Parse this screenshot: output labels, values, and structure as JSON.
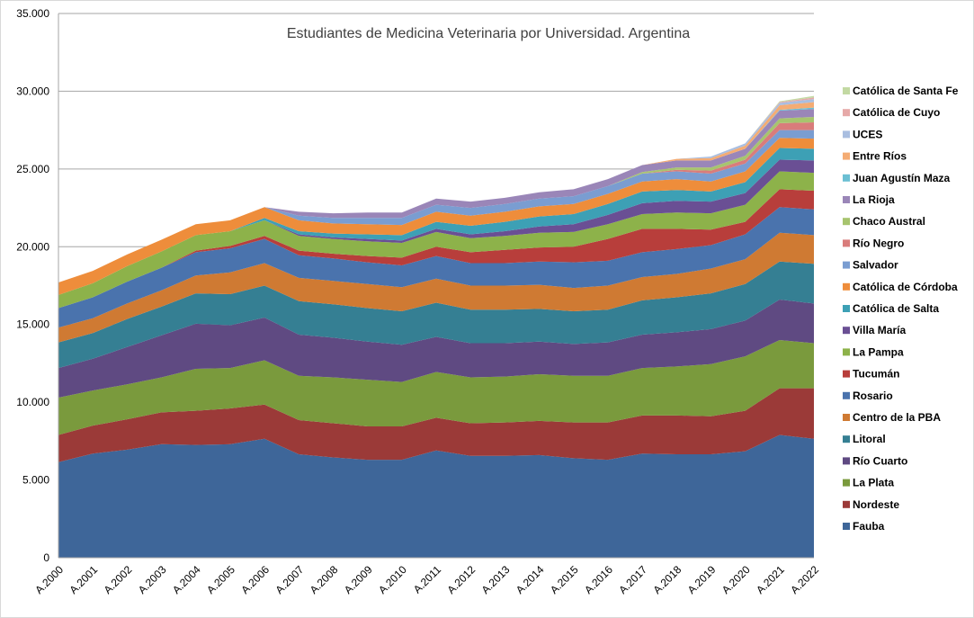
{
  "chart_data": {
    "type": "area",
    "stacked": true,
    "title": "Estudiantes de Medicina Veterinaria por Universidad. Argentina",
    "xlabel": "",
    "ylabel": "",
    "ylim": [
      0,
      35000
    ],
    "yticks": [
      0,
      5000,
      10000,
      15000,
      20000,
      25000,
      30000,
      35000
    ],
    "ytick_labels": [
      "0",
      "5.000",
      "10.000",
      "15.000",
      "20.000",
      "25.000",
      "30.000",
      "35.000"
    ],
    "grid": true,
    "legend_position": "right",
    "categories": [
      "A.2000",
      "A.2001",
      "A.2002",
      "A.2003",
      "A.2004",
      "A.2005",
      "A.2006",
      "A.2007",
      "A.2008",
      "A.2009",
      "A.2010",
      "A.2011",
      "A.2012",
      "A.2013",
      "A.2014",
      "A.2015",
      "A.2016",
      "A.2017",
      "A.2018",
      "A.2019",
      "A.2020",
      "A.2021",
      "A.2022"
    ],
    "series": [
      {
        "name": "Fauba",
        "color": "#3e6699",
        "values": [
          6150,
          6700,
          6950,
          7300,
          7250,
          7300,
          7650,
          6650,
          6450,
          6300,
          6300,
          6900,
          6550,
          6550,
          6600,
          6400,
          6300,
          6700,
          6650,
          6650,
          6850,
          7900,
          7650
        ]
      },
      {
        "name": "Nordeste",
        "color": "#9b3a38",
        "values": [
          1750,
          1800,
          1950,
          2050,
          2200,
          2300,
          2200,
          2200,
          2200,
          2150,
          2150,
          2100,
          2100,
          2150,
          2200,
          2300,
          2400,
          2450,
          2500,
          2450,
          2600,
          3000,
          3250
        ]
      },
      {
        "name": "La Plata",
        "color": "#7a9a3d",
        "values": [
          2400,
          2250,
          2250,
          2250,
          2700,
          2600,
          2850,
          2850,
          2950,
          3000,
          2850,
          2950,
          2950,
          2950,
          3000,
          3000,
          3000,
          3050,
          3150,
          3350,
          3500,
          3100,
          2900
        ]
      },
      {
        "name": "Río Cuarto",
        "color": "#5f4a82",
        "values": [
          1900,
          2050,
          2400,
          2700,
          2900,
          2750,
          2750,
          2650,
          2550,
          2450,
          2400,
          2250,
          2200,
          2150,
          2100,
          2050,
          2150,
          2150,
          2200,
          2250,
          2300,
          2600,
          2550
        ]
      },
      {
        "name": "Litoral",
        "color": "#357f93",
        "values": [
          1650,
          1650,
          1800,
          1850,
          1950,
          2000,
          2050,
          2150,
          2150,
          2150,
          2150,
          2200,
          2150,
          2150,
          2100,
          2100,
          2100,
          2200,
          2250,
          2300,
          2350,
          2450,
          2550
        ]
      },
      {
        "name": "Centro de la PBA",
        "color": "#cf7a33",
        "values": [
          950,
          950,
          1000,
          1050,
          1150,
          1400,
          1450,
          1500,
          1500,
          1550,
          1550,
          1550,
          1550,
          1550,
          1550,
          1500,
          1550,
          1500,
          1500,
          1600,
          1600,
          1850,
          1850
        ]
      },
      {
        "name": "Rosario",
        "color": "#4a73ad",
        "values": [
          1250,
          1350,
          1400,
          1450,
          1500,
          1550,
          1550,
          1450,
          1450,
          1400,
          1400,
          1450,
          1450,
          1450,
          1500,
          1650,
          1600,
          1600,
          1600,
          1500,
          1600,
          1650,
          1650
        ]
      },
      {
        "name": "Tucumán",
        "color": "#b83e3b",
        "values": [
          0,
          0,
          0,
          0,
          100,
          150,
          200,
          300,
          300,
          400,
          500,
          600,
          700,
          850,
          900,
          1000,
          1400,
          1500,
          1300,
          1000,
          800,
          1150,
          1200
        ]
      },
      {
        "name": "La Pampa",
        "color": "#8db24a",
        "values": [
          850,
          900,
          1000,
          1050,
          1000,
          950,
          1000,
          950,
          950,
          950,
          950,
          950,
          900,
          900,
          950,
          950,
          950,
          950,
          1050,
          1050,
          1100,
          1150,
          1150
        ]
      },
      {
        "name": "Villa María",
        "color": "#6a4f94",
        "values": [
          0,
          0,
          0,
          0,
          0,
          0,
          0,
          100,
          100,
          150,
          150,
          200,
          250,
          300,
          400,
          500,
          600,
          700,
          750,
          750,
          750,
          750,
          800
        ]
      },
      {
        "name": "Católica de Salta",
        "color": "#3da0b5",
        "values": [
          0,
          0,
          0,
          0,
          0,
          0,
          150,
          200,
          250,
          300,
          350,
          450,
          550,
          600,
          650,
          650,
          700,
          750,
          700,
          650,
          700,
          750,
          750
        ]
      },
      {
        "name": "Católica de Córdoba",
        "color": "#ee8d3b",
        "values": [
          800,
          800,
          750,
          750,
          700,
          700,
          700,
          700,
          650,
          650,
          650,
          650,
          650,
          650,
          650,
          650,
          650,
          650,
          700,
          650,
          700,
          650,
          650
        ]
      },
      {
        "name": "Salvador",
        "color": "#7a9dd1",
        "values": [
          0,
          0,
          0,
          0,
          0,
          0,
          0,
          300,
          350,
          400,
          450,
          450,
          500,
          500,
          500,
          500,
          500,
          500,
          500,
          500,
          500,
          500,
          550
        ]
      },
      {
        "name": "Río Negro",
        "color": "#d97c7b",
        "values": [
          0,
          0,
          0,
          0,
          0,
          0,
          0,
          0,
          0,
          0,
          0,
          0,
          0,
          0,
          0,
          0,
          0,
          0,
          100,
          200,
          250,
          450,
          500
        ]
      },
      {
        "name": "Chaco Austral",
        "color": "#a7c46e",
        "values": [
          0,
          0,
          0,
          0,
          0,
          0,
          0,
          0,
          0,
          0,
          0,
          0,
          0,
          0,
          0,
          0,
          0,
          100,
          150,
          200,
          250,
          300,
          350
        ]
      },
      {
        "name": "La Rioja",
        "color": "#9a86b8",
        "values": [
          0,
          0,
          0,
          0,
          0,
          0,
          0,
          250,
          300,
          350,
          350,
          400,
          400,
          400,
          400,
          450,
          450,
          450,
          450,
          450,
          450,
          500,
          500
        ]
      },
      {
        "name": "Juan Agustín Maza",
        "color": "#6bbfd3",
        "values": [
          0,
          0,
          0,
          0,
          0,
          0,
          0,
          0,
          0,
          0,
          0,
          0,
          0,
          0,
          0,
          0,
          0,
          0,
          0,
          0,
          0,
          50,
          100
        ]
      },
      {
        "name": "Entre Ríos",
        "color": "#f4ac74",
        "values": [
          0,
          0,
          0,
          0,
          0,
          0,
          0,
          0,
          0,
          0,
          0,
          0,
          0,
          0,
          0,
          0,
          0,
          0,
          100,
          150,
          200,
          300,
          350
        ]
      },
      {
        "name": "UCES",
        "color": "#a9bee0",
        "values": [
          0,
          0,
          0,
          0,
          0,
          0,
          0,
          0,
          0,
          0,
          0,
          0,
          0,
          0,
          0,
          0,
          0,
          0,
          0,
          100,
          150,
          150,
          200
        ]
      },
      {
        "name": "Católica de Cuyo",
        "color": "#e6a9a8",
        "values": [
          0,
          0,
          0,
          0,
          0,
          0,
          0,
          0,
          0,
          0,
          0,
          0,
          0,
          0,
          0,
          0,
          0,
          0,
          0,
          0,
          0,
          50,
          100
        ]
      },
      {
        "name": "Católica de Santa Fe",
        "color": "#c3d9a3",
        "values": [
          0,
          0,
          0,
          0,
          0,
          0,
          0,
          0,
          0,
          0,
          0,
          0,
          0,
          0,
          0,
          0,
          0,
          0,
          0,
          0,
          0,
          50,
          100
        ]
      }
    ]
  }
}
